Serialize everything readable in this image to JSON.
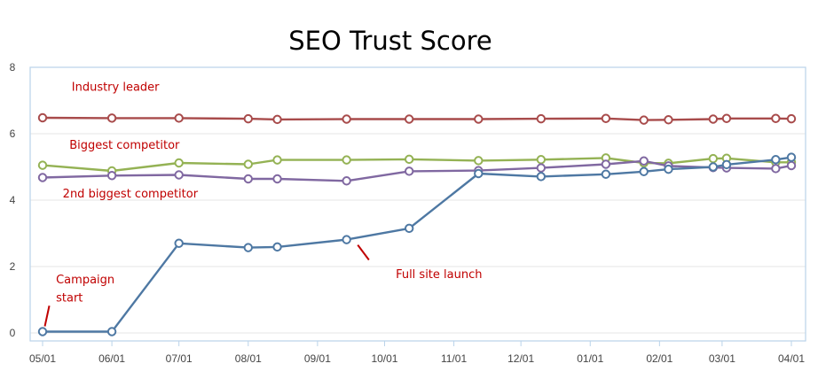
{
  "chart_data": {
    "type": "line",
    "title": "SEO Trust Score",
    "xlabel": "",
    "ylabel": "",
    "ylim": [
      0,
      8
    ],
    "xlim": [
      "2014-05-01",
      "2015-04-01"
    ],
    "grid": true,
    "legend": "none",
    "x_ticks": [
      "05/01",
      "06/01",
      "07/01",
      "08/01",
      "09/01",
      "10/01",
      "11/01",
      "12/01",
      "01/01",
      "02/01",
      "03/01",
      "04/01"
    ],
    "y_ticks": [
      "0",
      "2",
      "4",
      "6",
      "8"
    ],
    "series": [
      {
        "color": "#a84b4b",
        "x": [
          "2014-05-01",
          "2014-06-01",
          "2014-07-01",
          "2014-08-01",
          "2014-08-14",
          "2014-09-14",
          "2014-10-12",
          "2014-11-12",
          "2014-12-10",
          "2015-01-08",
          "2015-01-25",
          "2015-02-05",
          "2015-02-25",
          "2015-03-03",
          "2015-03-25",
          "2015-04-01"
        ],
        "values": [
          6.48,
          6.47,
          6.47,
          6.45,
          6.43,
          6.44,
          6.44,
          6.44,
          6.45,
          6.46,
          6.41,
          6.42,
          6.44,
          6.46,
          6.46,
          6.45
        ]
      },
      {
        "color": "#94b254",
        "x": [
          "2014-05-01",
          "2014-06-01",
          "2014-07-01",
          "2014-08-01",
          "2014-08-14",
          "2014-09-14",
          "2014-10-12",
          "2014-11-12",
          "2014-12-10",
          "2015-01-08",
          "2015-01-25",
          "2015-02-05",
          "2015-02-25",
          "2015-03-03",
          "2015-03-25",
          "2015-04-01"
        ],
        "values": [
          5.05,
          4.88,
          5.12,
          5.08,
          5.21,
          5.21,
          5.23,
          5.19,
          5.22,
          5.27,
          5.12,
          5.11,
          5.25,
          5.26,
          5.14,
          5.14
        ]
      },
      {
        "color": "#8068a1",
        "x": [
          "2014-05-01",
          "2014-06-01",
          "2014-07-01",
          "2014-08-01",
          "2014-08-14",
          "2014-09-14",
          "2014-10-12",
          "2014-11-12",
          "2014-12-10",
          "2015-01-08",
          "2015-01-25",
          "2015-02-05",
          "2015-02-25",
          "2015-03-03",
          "2015-03-25",
          "2015-04-01"
        ],
        "values": [
          4.68,
          4.74,
          4.76,
          4.64,
          4.64,
          4.58,
          4.87,
          4.89,
          4.97,
          5.08,
          5.18,
          5.03,
          4.98,
          4.97,
          4.95,
          5.04
        ]
      },
      {
        "color": "#4e78a3",
        "x": [
          "2014-05-01",
          "2014-06-01",
          "2014-07-01",
          "2014-08-01",
          "2014-08-14",
          "2014-09-14",
          "2014-10-12",
          "2014-11-12",
          "2014-12-10",
          "2015-01-08",
          "2015-01-25",
          "2015-02-05",
          "2015-02-25",
          "2015-03-03",
          "2015-03-25",
          "2015-04-01"
        ],
        "values": [
          0.04,
          0.04,
          2.7,
          2.57,
          2.59,
          2.81,
          3.15,
          4.8,
          4.71,
          4.78,
          4.86,
          4.93,
          5.0,
          5.07,
          5.22,
          5.29
        ]
      }
    ],
    "annotations": [
      {
        "text": "Industry leader",
        "x": "2014-05-14",
        "y": 7.3,
        "color": "#c00000"
      },
      {
        "text": "Biggest competitor",
        "x": "2014-05-13",
        "y": 5.55,
        "color": "#c00000"
      },
      {
        "text": "2nd biggest competitor",
        "x": "2014-05-10",
        "y": 4.08,
        "color": "#c00000"
      },
      {
        "text": "Campaign",
        "x": "2014-05-07",
        "y": 1.5,
        "color": "#c00000"
      },
      {
        "text": "start",
        "x": "2014-05-07",
        "y": 0.95,
        "color": "#c00000"
      },
      {
        "text": "Full site launch",
        "x": "2014-10-06",
        "y": 1.66,
        "color": "#c00000"
      }
    ],
    "arrows": [
      {
        "from": [
          "2014-05-04",
          0.82
        ],
        "to": [
          "2014-05-02",
          0.2
        ],
        "color": "#c00000"
      },
      {
        "from": [
          "2014-09-24",
          2.2
        ],
        "to": [
          "2014-09-19",
          2.65
        ],
        "color": "#c00000"
      }
    ]
  }
}
